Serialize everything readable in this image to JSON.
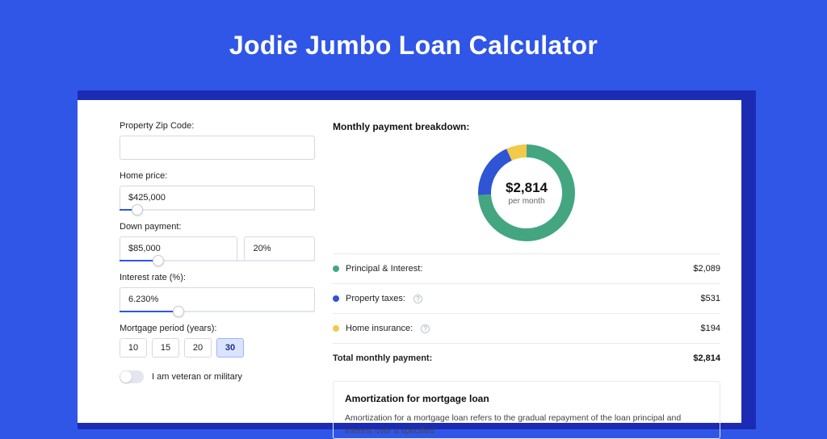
{
  "title": "Jodie Jumbo Loan Calculator",
  "colors": {
    "page_bg": "#3056e8",
    "shadow_panel": "#1b2bb3",
    "panel_bg": "#ffffff",
    "border": "#d7d9de",
    "slider_track": "#e3e6ee",
    "slider_fill": "#3056e8"
  },
  "form": {
    "zip": {
      "label": "Property Zip Code:",
      "value": ""
    },
    "price": {
      "label": "Home price:",
      "value": "$425,000",
      "slider_fill_pct": 9,
      "handle_pct": 9
    },
    "down": {
      "label": "Down payment:",
      "amount": "$85,000",
      "pct": "20%",
      "slider_fill_pct": 20,
      "handle_pct": 20
    },
    "rate": {
      "label": "Interest rate (%):",
      "value": "6.230%",
      "slider_fill_pct": 30,
      "handle_pct": 30
    },
    "period": {
      "label": "Mortgage period (years):",
      "options": [
        "10",
        "15",
        "20",
        "30"
      ],
      "active_index": 3
    },
    "veteran": {
      "label": "I am veteran or military",
      "on": false
    }
  },
  "breakdown": {
    "title": "Monthly payment breakdown:",
    "donut": {
      "type": "donut",
      "center_value": "$2,814",
      "center_sub": "per month",
      "stroke_width": 16,
      "radius": 52,
      "slices": [
        {
          "key": "principal_interest",
          "color": "#44a681",
          "pct": 74.2
        },
        {
          "key": "property_taxes",
          "color": "#2f55d4",
          "pct": 18.9
        },
        {
          "key": "home_insurance",
          "color": "#f3c94a",
          "pct": 6.9
        }
      ]
    },
    "items": [
      {
        "label": "Principal & Interest:",
        "color": "#44a681",
        "value": "$2,089",
        "info": false
      },
      {
        "label": "Property taxes:",
        "color": "#2f55d4",
        "value": "$531",
        "info": true
      },
      {
        "label": "Home insurance:",
        "color": "#f3c94a",
        "value": "$194",
        "info": true
      }
    ],
    "total": {
      "label": "Total monthly payment:",
      "value": "$2,814"
    }
  },
  "amort": {
    "title": "Amortization for mortgage loan",
    "text": "Amortization for a mortgage loan refers to the gradual repayment of the loan principal and interest over a specified"
  }
}
